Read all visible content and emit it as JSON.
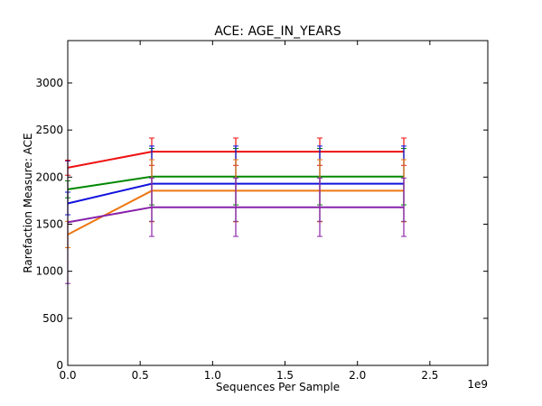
{
  "chart_data": {
    "type": "line",
    "title": "ACE: AGE_IN_YEARS",
    "xlabel": "Sequences Per Sample",
    "ylabel": "Rarefaction Measure: ACE",
    "x_offset_label": "1e9",
    "xlim": [
      0,
      2.9
    ],
    "ylim": [
      0,
      3450
    ],
    "x_ticks": [
      0,
      0.5,
      1,
      1.5,
      2,
      2.5
    ],
    "x_tick_labels": [
      "0.0",
      "0.5",
      "1.0",
      "1.5",
      "2.0",
      "2.5"
    ],
    "y_ticks": [
      0,
      500,
      1000,
      1500,
      2000,
      2500,
      3000
    ],
    "y_tick_labels": [
      "0",
      "500",
      "1000",
      "1500",
      "2000",
      "2500",
      "3000"
    ],
    "grid": false,
    "x": [
      0,
      0.58,
      1.16,
      1.74,
      2.32
    ],
    "series": [
      {
        "color": "#ee1111",
        "values": [
          2100,
          2270,
          2270,
          2270,
          2270
        ],
        "err": [
          80,
          145,
          145,
          145,
          145
        ]
      },
      {
        "color": "#008800",
        "values": [
          1870,
          2005,
          2005,
          2005,
          2005
        ],
        "err": [
          90,
          300,
          300,
          300,
          300
        ]
      },
      {
        "color": "#1111dd",
        "values": [
          1720,
          1930,
          1930,
          1930,
          1930
        ],
        "err": [
          120,
          400,
          400,
          400,
          400
        ]
      },
      {
        "color": "#ee7711",
        "values": [
          1390,
          1855,
          1855,
          1855,
          1855
        ],
        "err": [
          140,
          330,
          330,
          330,
          330
        ]
      },
      {
        "color": "#8822aa",
        "values": [
          1520,
          1680,
          1680,
          1680,
          1680
        ],
        "err": [
          650,
          310,
          310,
          310,
          310
        ]
      }
    ]
  }
}
